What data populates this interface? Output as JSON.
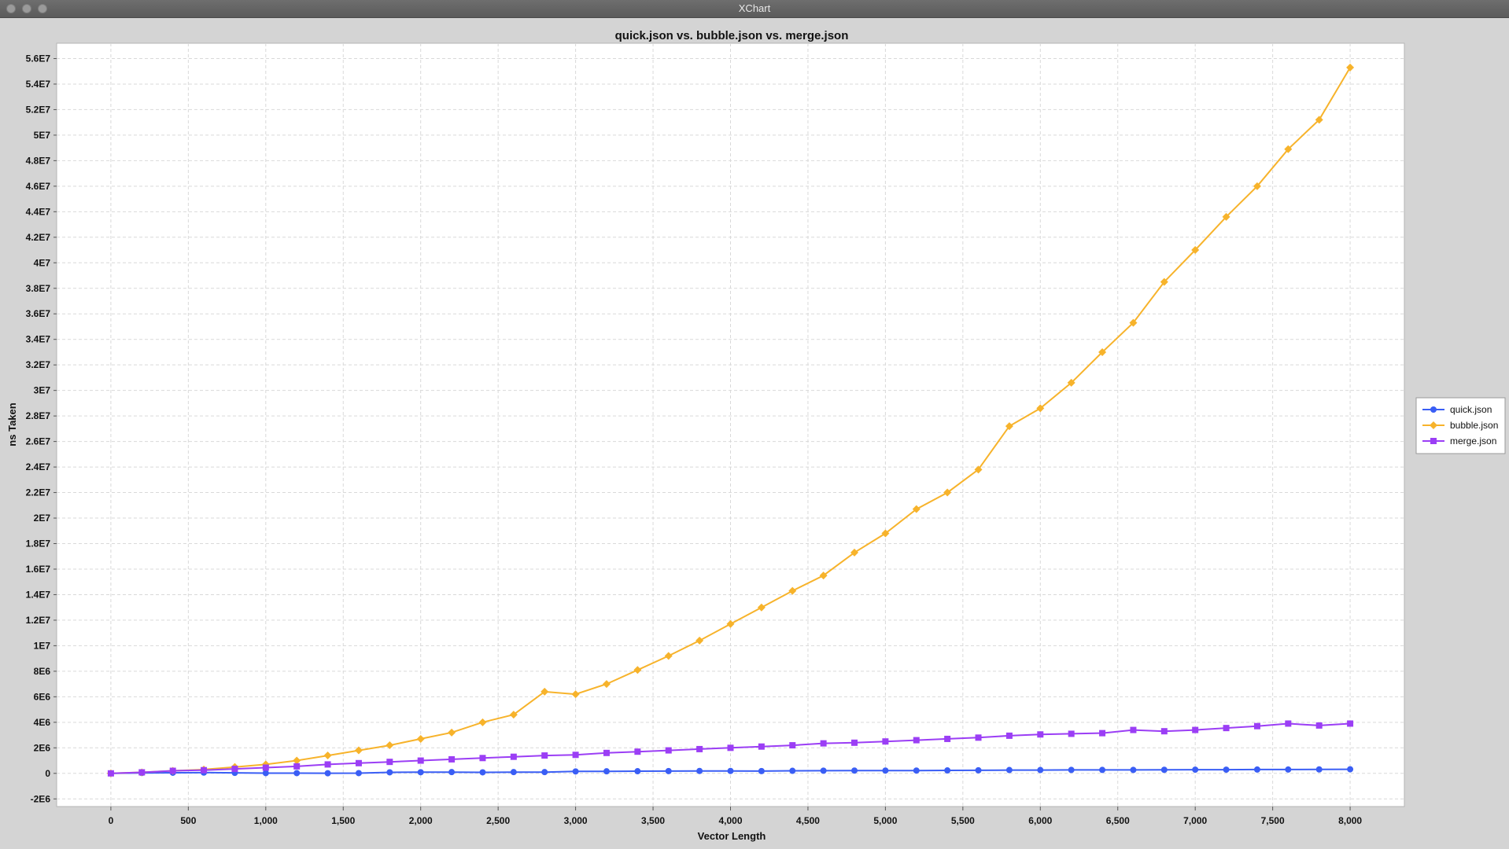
{
  "window": {
    "title": "XChart"
  },
  "chart_data": {
    "type": "line",
    "title": "quick.json vs. bubble.json vs. merge.json",
    "xlabel": "Vector Length",
    "ylabel": "ns Taken",
    "xlim": [
      -350,
      8350
    ],
    "ylim": [
      -2600000,
      57200000
    ],
    "xticks": [
      0,
      500,
      1000,
      1500,
      2000,
      2500,
      3000,
      3500,
      4000,
      4500,
      5000,
      5500,
      6000,
      6500,
      7000,
      7500,
      8000
    ],
    "xtick_labels": [
      "0",
      "500",
      "1,000",
      "1,500",
      "2,000",
      "2,500",
      "3,000",
      "3,500",
      "4,000",
      "4,500",
      "5,000",
      "5,500",
      "6,000",
      "6,500",
      "7,000",
      "7,500",
      "8,000"
    ],
    "yticks": [
      -2000000,
      0,
      2000000,
      4000000,
      6000000,
      8000000,
      10000000,
      12000000,
      14000000,
      16000000,
      18000000,
      20000000,
      22000000,
      24000000,
      26000000,
      28000000,
      30000000,
      32000000,
      34000000,
      36000000,
      38000000,
      40000000,
      42000000,
      44000000,
      46000000,
      48000000,
      50000000,
      52000000,
      54000000,
      56000000
    ],
    "ytick_labels": [
      "-2E6",
      "0",
      "2E6",
      "4E6",
      "6E6",
      "8E6",
      "1E7",
      "1.2E7",
      "1.4E7",
      "1.6E7",
      "1.8E7",
      "2E7",
      "2.2E7",
      "2.4E7",
      "2.6E7",
      "2.8E7",
      "3E7",
      "3.2E7",
      "3.4E7",
      "3.6E7",
      "3.8E7",
      "4E7",
      "4.2E7",
      "4.4E7",
      "4.6E7",
      "4.8E7",
      "5E7",
      "5.2E7",
      "5.4E7",
      "5.6E7"
    ],
    "grid": true,
    "legend_position": "outside-right",
    "x": [
      0,
      200,
      400,
      600,
      800,
      1000,
      1200,
      1400,
      1600,
      1800,
      2000,
      2200,
      2400,
      2600,
      2800,
      3000,
      3200,
      3400,
      3600,
      3800,
      4000,
      4200,
      4400,
      4600,
      4800,
      5000,
      5200,
      5400,
      5600,
      5800,
      6000,
      6200,
      6400,
      6600,
      6800,
      7000,
      7200,
      7400,
      7600,
      7800,
      8000
    ],
    "series": [
      {
        "name": "quick.json",
        "color": "#3a5ef5",
        "marker": "circle",
        "values": [
          0,
          30000,
          50000,
          60000,
          40000,
          20000,
          20000,
          10000,
          20000,
          80000,
          90000,
          100000,
          80000,
          100000,
          100000,
          150000,
          160000,
          170000,
          180000,
          190000,
          190000,
          180000,
          200000,
          210000,
          220000,
          220000,
          220000,
          230000,
          240000,
          260000,
          260000,
          270000,
          270000,
          270000,
          280000,
          290000,
          290000,
          300000,
          300000,
          310000,
          320000
        ]
      },
      {
        "name": "bubble.json",
        "color": "#f7b32b",
        "marker": "diamond",
        "values": [
          0,
          80000,
          200000,
          300000,
          500000,
          700000,
          1000000,
          1400000,
          1800000,
          2200000,
          2700000,
          3200000,
          4000000,
          4600000,
          6400000,
          6200000,
          7000000,
          8100000,
          9200000,
          10400000,
          11700000,
          13000000,
          14300000,
          15500000,
          17300000,
          18800000,
          20700000,
          22000000,
          23800000,
          27200000,
          28600000,
          30600000,
          33000000,
          35300000,
          38500000,
          41000000,
          43600000,
          46000000,
          48900000,
          51200000,
          55300000
        ]
      },
      {
        "name": "merge.json",
        "color": "#9b3ef5",
        "marker": "square",
        "values": [
          0,
          80000,
          200000,
          250000,
          350000,
          450000,
          550000,
          700000,
          800000,
          900000,
          1000000,
          1100000,
          1200000,
          1300000,
          1400000,
          1450000,
          1600000,
          1700000,
          1800000,
          1900000,
          2000000,
          2100000,
          2200000,
          2350000,
          2400000,
          2500000,
          2600000,
          2700000,
          2800000,
          2950000,
          3050000,
          3100000,
          3150000,
          3400000,
          3300000,
          3400000,
          3550000,
          3700000,
          3900000,
          3750000,
          3900000
        ]
      }
    ]
  }
}
